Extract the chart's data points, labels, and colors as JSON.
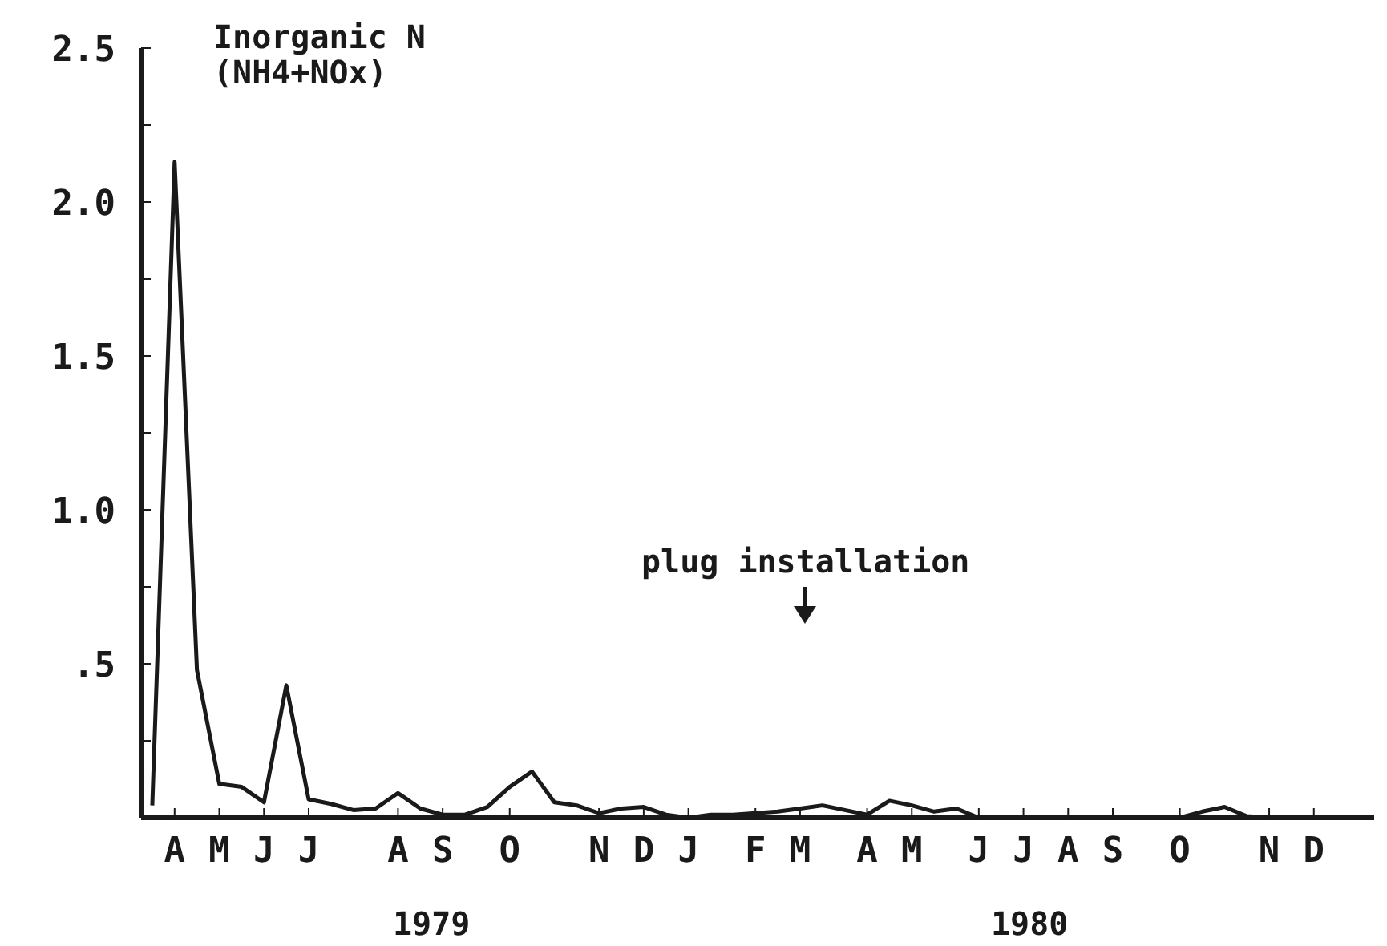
{
  "chart_data": {
    "type": "line",
    "title": "Inorganic N",
    "subtitle": "(NH4+NOx)",
    "categories": [
      null,
      "A",
      null,
      "M",
      null,
      "J",
      null,
      "J",
      null,
      null,
      null,
      "A",
      null,
      "S",
      null,
      null,
      "O",
      null,
      null,
      null,
      "N",
      null,
      "D",
      null,
      "J",
      null,
      null,
      "F",
      null,
      "M",
      null,
      null,
      "A",
      null,
      "M",
      null,
      null,
      "J",
      null,
      "J",
      null,
      "A",
      null,
      "S",
      null,
      null,
      "O",
      null,
      null,
      null,
      "N",
      null,
      "D",
      null,
      null
    ],
    "series": [
      {
        "color": "#1a1a1a",
        "values": [
          0.04,
          2.13,
          0.48,
          0.11,
          0.1,
          0.05,
          0.43,
          0.06,
          0.045,
          0.025,
          0.03,
          0.08,
          0.03,
          0.01,
          0.01,
          0.035,
          0.1,
          0.15,
          0.05,
          0.04,
          0.015,
          0.03,
          0.035,
          0.01,
          0,
          0.01,
          0.01,
          0.015,
          0.02,
          0.03,
          0.04,
          0.025,
          0.01,
          0.055,
          0.04,
          0.02,
          0.03,
          0,
          0,
          0,
          0,
          0,
          0,
          0,
          0,
          0,
          0,
          0.02,
          0.035,
          0.005,
          0,
          0,
          0,
          0,
          0
        ]
      }
    ],
    "ylim": [
      0,
      2.5
    ],
    "yticks": [
      {
        "value": 0,
        "label": null
      },
      {
        "value": 0.25,
        "label": null
      },
      {
        "value": 0.5,
        "label": ".5"
      },
      {
        "value": 0.75,
        "label": null
      },
      {
        "value": 1,
        "label": "1.0"
      },
      {
        "value": 1.25,
        "label": null
      },
      {
        "value": 1.5,
        "label": "1.5"
      },
      {
        "value": 1.75,
        "label": null
      },
      {
        "value": 2,
        "label": "2.0"
      },
      {
        "value": 2.25,
        "label": null
      },
      {
        "value": 2.5,
        "label": "2.5"
      }
    ],
    "annotations": [
      "plug installation",
      "1979",
      "1980"
    ],
    "grid": false,
    "legend": false,
    "marker": "none",
    "line_style": "solid"
  }
}
